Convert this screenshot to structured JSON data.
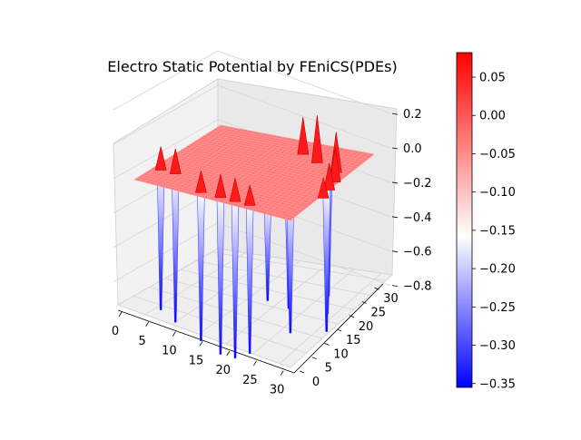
{
  "chart_data": {
    "type": "surface3d",
    "title": "Electro Static Potential by FEniCS(PDEs)",
    "xlabel": "",
    "ylabel": "",
    "zlabel": "",
    "x_ticks": [
      "0",
      "5",
      "10",
      "15",
      "20",
      "25",
      "30"
    ],
    "y_ticks": [
      "0",
      "5",
      "10",
      "15",
      "20",
      "25",
      "30"
    ],
    "z_ticks": [
      "0.2",
      "0.0",
      "−0.2",
      "−0.4",
      "−0.6",
      "−0.8"
    ],
    "xlim": [
      0,
      32
    ],
    "ylim": [
      0,
      32
    ],
    "zlim": [
      -0.95,
      0.28
    ],
    "grid": true,
    "colormap": "bwr",
    "colorbar": {
      "ticks": [
        "0.05",
        "0.00",
        "−0.05",
        "−0.10",
        "−0.15",
        "−0.20",
        "−0.25",
        "−0.30",
        "−0.35"
      ],
      "tick_values": [
        0.05,
        0.0,
        -0.05,
        -0.1,
        -0.15,
        -0.2,
        -0.25,
        -0.3,
        -0.35
      ],
      "range": [
        -0.355,
        0.082
      ]
    },
    "surface": {
      "base_level": 0.0,
      "peaks": [
        {
          "x": 1,
          "y": 8,
          "z": 0.12
        },
        {
          "x": 4,
          "y": 8,
          "z": 0.13
        },
        {
          "x": 12,
          "y": 3,
          "z": 0.11
        },
        {
          "x": 16,
          "y": 3,
          "z": 0.12
        },
        {
          "x": 19,
          "y": 3,
          "z": 0.12
        },
        {
          "x": 22,
          "y": 3,
          "z": 0.1
        },
        {
          "x": 27,
          "y": 26,
          "z": 0.22
        },
        {
          "x": 29,
          "y": 22,
          "z": 0.18
        },
        {
          "x": 30,
          "y": 18,
          "z": 0.14
        },
        {
          "x": 31,
          "y": 14,
          "z": 0.1
        },
        {
          "x": 18,
          "y": 30,
          "z": 0.2
        },
        {
          "x": 22,
          "y": 28,
          "z": 0.26
        }
      ],
      "wells": [
        {
          "x": 1,
          "y": 8,
          "z": -0.85
        },
        {
          "x": 4,
          "y": 8,
          "z": -0.9
        },
        {
          "x": 12,
          "y": 3,
          "z": -0.9
        },
        {
          "x": 16,
          "y": 3,
          "z": -0.95
        },
        {
          "x": 19,
          "y": 3,
          "z": -0.95
        },
        {
          "x": 22,
          "y": 3,
          "z": -0.9
        },
        {
          "x": 26,
          "y": 25,
          "z": -0.75
        },
        {
          "x": 28,
          "y": 21,
          "z": -0.8
        },
        {
          "x": 30,
          "y": 17,
          "z": -0.85
        },
        {
          "x": 25,
          "y": 12,
          "z": -0.7
        },
        {
          "x": 27,
          "y": 9,
          "z": -0.8
        },
        {
          "x": 24,
          "y": 6,
          "z": -0.6
        }
      ]
    }
  }
}
